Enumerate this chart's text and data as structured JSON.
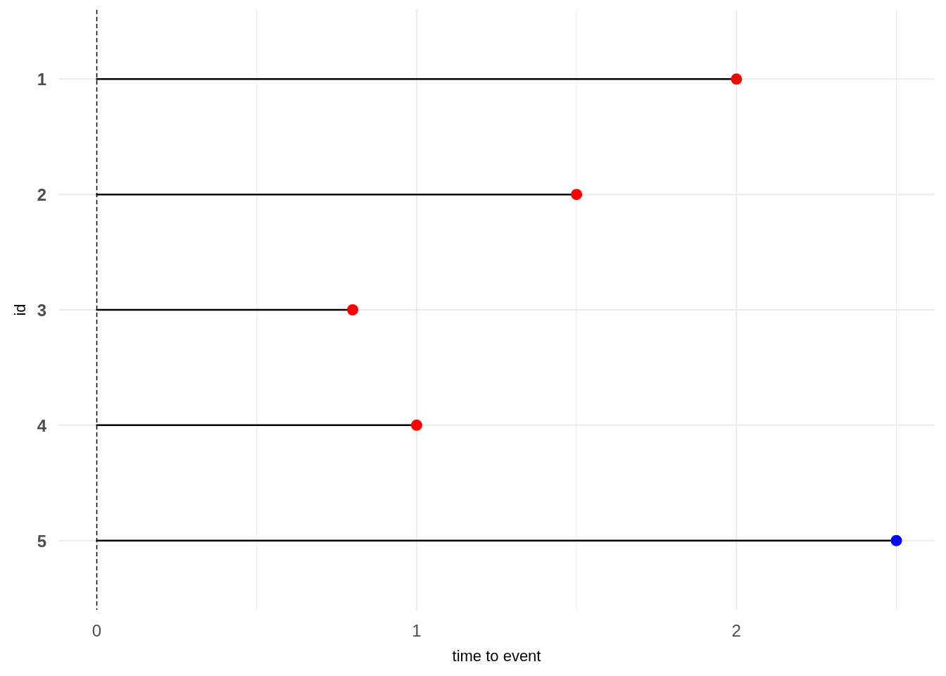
{
  "chart_data": {
    "type": "lollipop",
    "orientation": "horizontal",
    "xlabel": "time to event",
    "ylabel": "id",
    "categories": [
      "1",
      "2",
      "3",
      "4",
      "5"
    ],
    "values": [
      2,
      1.5,
      0.8,
      1,
      2.5
    ],
    "colors": [
      "#ff0000",
      "#ff0000",
      "#ff0000",
      "#ff0000",
      "#0000ff"
    ],
    "xlim": [
      -0.12,
      2.62
    ],
    "xticks": [
      0,
      {
        "value": 0.5,
        "label": null
      },
      1,
      {
        "value": 1.5,
        "label": null
      },
      2,
      {
        "value": 2.5,
        "label": null
      }
    ],
    "grid": true,
    "marker": "circle",
    "ref_lines": [
      {
        "axis": "x",
        "value": 0,
        "color": "#000000",
        "line_style": "dashed"
      }
    ]
  }
}
